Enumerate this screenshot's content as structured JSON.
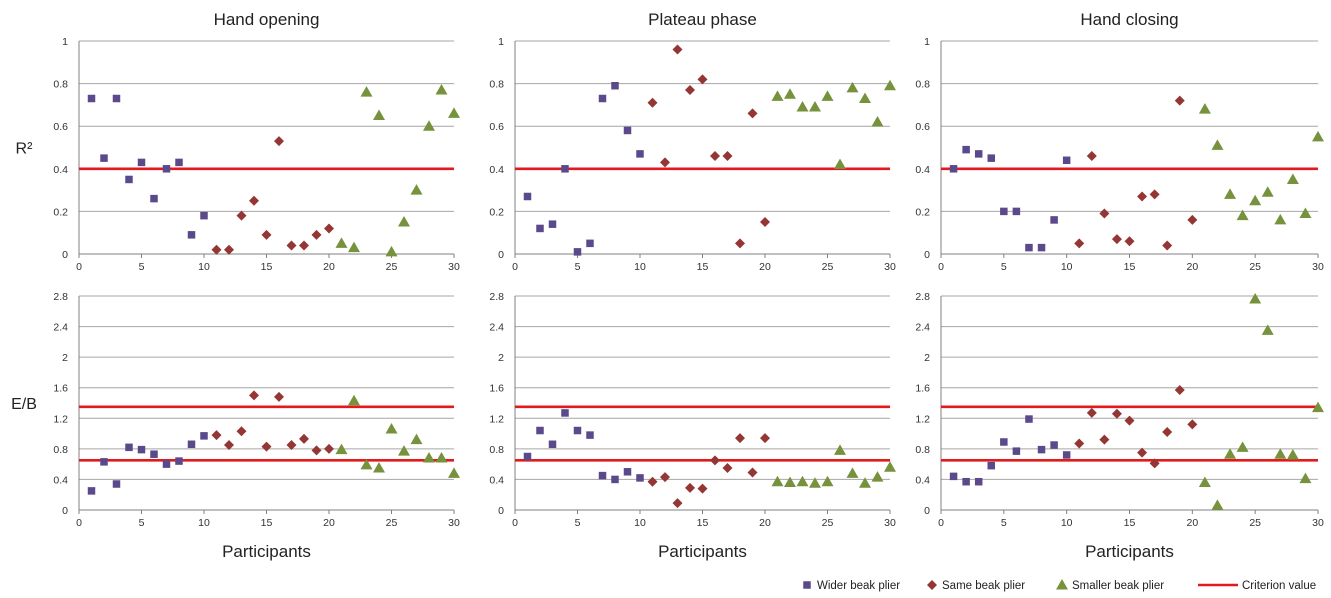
{
  "chart_data": {
    "type": "scatter",
    "panel_titles": [
      "Hand opening",
      "Plateau phase",
      "Hand closing"
    ],
    "row_ylabels": [
      "R²",
      "E/B"
    ],
    "xlabel": "Participants",
    "xlim": [
      0,
      30
    ],
    "xticks": [
      "0",
      "5",
      "10",
      "15",
      "20",
      "25",
      "30"
    ],
    "rows": [
      {
        "ylabel": "R²",
        "ylim": [
          0,
          1
        ],
        "yticks": [
          "0",
          "0.2",
          "0.4",
          "0.6",
          "0.8",
          "1"
        ],
        "criterion": [
          0.4
        ],
        "panels": [
          {
            "title": "Hand opening",
            "wider": [
              [
                1,
                0.73
              ],
              [
                2,
                0.45
              ],
              [
                3,
                0.73
              ],
              [
                4,
                0.35
              ],
              [
                5,
                0.43
              ],
              [
                6,
                0.26
              ],
              [
                7,
                0.4
              ],
              [
                8,
                0.43
              ],
              [
                9,
                0.09
              ],
              [
                10,
                0.18
              ]
            ],
            "same": [
              [
                11,
                0.02
              ],
              [
                12,
                0.02
              ],
              [
                13,
                0.18
              ],
              [
                14,
                0.25
              ],
              [
                15,
                0.09
              ],
              [
                16,
                0.53
              ],
              [
                17,
                0.04
              ],
              [
                18,
                0.04
              ],
              [
                19,
                0.09
              ],
              [
                20,
                0.12
              ]
            ],
            "smaller": [
              [
                21,
                0.05
              ],
              [
                22,
                0.03
              ],
              [
                23,
                0.76
              ],
              [
                24,
                0.65
              ],
              [
                25,
                0.01
              ],
              [
                26,
                0.15
              ],
              [
                27,
                0.3
              ],
              [
                28,
                0.6
              ],
              [
                29,
                0.77
              ],
              [
                30,
                0.66
              ]
            ]
          },
          {
            "title": "Plateau phase",
            "wider": [
              [
                1,
                0.27
              ],
              [
                2,
                0.12
              ],
              [
                3,
                0.14
              ],
              [
                4,
                0.4
              ],
              [
                5,
                0.01
              ],
              [
                6,
                0.05
              ],
              [
                7,
                0.73
              ],
              [
                8,
                0.79
              ],
              [
                9,
                0.58
              ],
              [
                10,
                0.47
              ]
            ],
            "same": [
              [
                11,
                0.71
              ],
              [
                12,
                0.43
              ],
              [
                13,
                0.96
              ],
              [
                14,
                0.77
              ],
              [
                15,
                0.82
              ],
              [
                16,
                0.46
              ],
              [
                17,
                0.46
              ],
              [
                18,
                0.05
              ],
              [
                19,
                0.66
              ],
              [
                20,
                0.15
              ]
            ],
            "smaller": [
              [
                21,
                0.74
              ],
              [
                22,
                0.75
              ],
              [
                23,
                0.69
              ],
              [
                24,
                0.69
              ],
              [
                25,
                0.74
              ],
              [
                26,
                0.42
              ],
              [
                27,
                0.78
              ],
              [
                28,
                0.73
              ],
              [
                29,
                0.62
              ],
              [
                30,
                0.79
              ]
            ]
          },
          {
            "title": "Hand closing",
            "wider": [
              [
                1,
                0.4
              ],
              [
                2,
                0.49
              ],
              [
                3,
                0.47
              ],
              [
                4,
                0.45
              ],
              [
                5,
                0.2
              ],
              [
                6,
                0.2
              ],
              [
                7,
                0.03
              ],
              [
                8,
                0.03
              ],
              [
                9,
                0.16
              ],
              [
                10,
                0.44
              ]
            ],
            "same": [
              [
                11,
                0.05
              ],
              [
                12,
                0.46
              ],
              [
                13,
                0.19
              ],
              [
                14,
                0.07
              ],
              [
                15,
                0.06
              ],
              [
                16,
                0.27
              ],
              [
                17,
                0.28
              ],
              [
                18,
                0.04
              ],
              [
                19,
                0.72
              ],
              [
                20,
                0.16
              ]
            ],
            "smaller": [
              [
                21,
                0.68
              ],
              [
                22,
                0.51
              ],
              [
                23,
                0.28
              ],
              [
                24,
                0.18
              ],
              [
                25,
                0.25
              ],
              [
                26,
                0.29
              ],
              [
                27,
                0.16
              ],
              [
                28,
                0.35
              ],
              [
                29,
                0.19
              ],
              [
                30,
                0.55
              ]
            ]
          }
        ]
      },
      {
        "ylabel": "E/B",
        "ylim": [
          0,
          2.8
        ],
        "yticks": [
          "0",
          "0.4",
          "0.8",
          "1.2",
          "1.6",
          "2",
          "2.4",
          "2.8"
        ],
        "criterion": [
          1.35,
          0.65
        ],
        "panels": [
          {
            "title": "Hand opening",
            "wider": [
              [
                1,
                0.25
              ],
              [
                2,
                0.63
              ],
              [
                3,
                0.34
              ],
              [
                4,
                0.82
              ],
              [
                5,
                0.79
              ],
              [
                6,
                0.73
              ],
              [
                7,
                0.6
              ],
              [
                8,
                0.64
              ],
              [
                9,
                0.86
              ],
              [
                10,
                0.97
              ]
            ],
            "same": [
              [
                11,
                0.98
              ],
              [
                12,
                0.85
              ],
              [
                13,
                1.03
              ],
              [
                14,
                1.5
              ],
              [
                15,
                0.83
              ],
              [
                16,
                1.48
              ],
              [
                17,
                0.85
              ],
              [
                18,
                0.93
              ],
              [
                19,
                0.78
              ],
              [
                20,
                0.8
              ]
            ],
            "smaller": [
              [
                21,
                0.79
              ],
              [
                22,
                1.43
              ],
              [
                23,
                0.59
              ],
              [
                24,
                0.55
              ],
              [
                25,
                1.06
              ],
              [
                26,
                0.77
              ],
              [
                27,
                0.92
              ],
              [
                28,
                0.68
              ],
              [
                29,
                0.68
              ],
              [
                30,
                0.48
              ]
            ]
          },
          {
            "title": "Plateau phase",
            "wider": [
              [
                1,
                0.7
              ],
              [
                2,
                1.04
              ],
              [
                3,
                0.86
              ],
              [
                4,
                1.27
              ],
              [
                5,
                1.04
              ],
              [
                6,
                0.98
              ],
              [
                7,
                0.45
              ],
              [
                8,
                0.4
              ],
              [
                9,
                0.5
              ],
              [
                10,
                0.42
              ]
            ],
            "same": [
              [
                11,
                0.37
              ],
              [
                12,
                0.43
              ],
              [
                13,
                0.09
              ],
              [
                14,
                0.29
              ],
              [
                15,
                0.28
              ],
              [
                16,
                0.65
              ],
              [
                17,
                0.55
              ],
              [
                18,
                0.94
              ],
              [
                19,
                0.49
              ],
              [
                20,
                0.94
              ]
            ],
            "smaller": [
              [
                21,
                0.37
              ],
              [
                22,
                0.36
              ],
              [
                23,
                0.37
              ],
              [
                24,
                0.35
              ],
              [
                25,
                0.37
              ],
              [
                26,
                0.78
              ],
              [
                27,
                0.48
              ],
              [
                28,
                0.35
              ],
              [
                29,
                0.43
              ],
              [
                30,
                0.56
              ]
            ]
          },
          {
            "title": "Hand closing",
            "wider": [
              [
                1,
                0.44
              ],
              [
                2,
                0.37
              ],
              [
                3,
                0.37
              ],
              [
                4,
                0.58
              ],
              [
                5,
                0.89
              ],
              [
                6,
                0.77
              ],
              [
                7,
                1.19
              ],
              [
                8,
                0.79
              ],
              [
                9,
                0.85
              ],
              [
                10,
                0.72
              ]
            ],
            "same": [
              [
                11,
                0.87
              ],
              [
                12,
                1.27
              ],
              [
                13,
                0.92
              ],
              [
                14,
                1.26
              ],
              [
                15,
                1.17
              ],
              [
                16,
                0.75
              ],
              [
                17,
                0.61
              ],
              [
                18,
                1.02
              ],
              [
                19,
                1.57
              ],
              [
                20,
                1.12
              ]
            ],
            "smaller": [
              [
                21,
                0.36
              ],
              [
                22,
                0.06
              ],
              [
                23,
                0.73
              ],
              [
                24,
                0.82
              ],
              [
                25,
                2.76
              ],
              [
                26,
                2.35
              ],
              [
                27,
                0.73
              ],
              [
                28,
                0.72
              ],
              [
                29,
                0.41
              ],
              [
                30,
                1.34
              ]
            ]
          }
        ]
      }
    ],
    "legend": {
      "position": "bottom-right",
      "entries": [
        {
          "key": "wider",
          "label": "Wider beak plier",
          "marker": "square",
          "color": "#5b4a8b"
        },
        {
          "key": "same",
          "label": "Same beak plier",
          "marker": "diamond",
          "color": "#943634"
        },
        {
          "key": "smaller",
          "label": "Smaller beak plier",
          "marker": "triangle",
          "color": "#76923c"
        },
        {
          "key": "criterion",
          "label": "Criterion value",
          "marker": "line",
          "color": "#e31a1c"
        }
      ]
    },
    "grid": true
  }
}
